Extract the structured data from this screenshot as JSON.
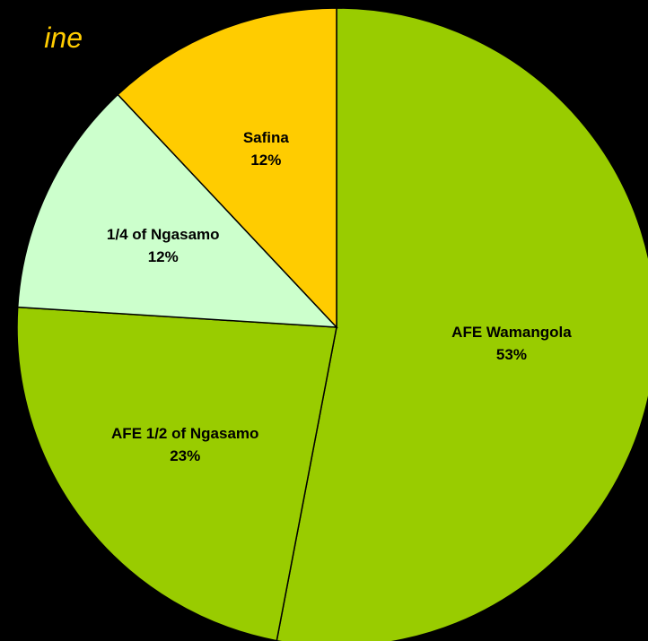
{
  "chart_data": {
    "type": "pie",
    "title": "ine",
    "categories": [
      "AFE Wamangola",
      "AFE 1/2 of Ngasamo",
      "1/4 of Ngasamo",
      "Safina"
    ],
    "values": [
      53,
      23,
      12,
      12
    ],
    "value_labels": [
      "53%",
      "23%",
      "12%",
      "12%"
    ],
    "colors": [
      "#99cc00",
      "#99cc00",
      "#ccffcc",
      "#ffcc00"
    ]
  }
}
